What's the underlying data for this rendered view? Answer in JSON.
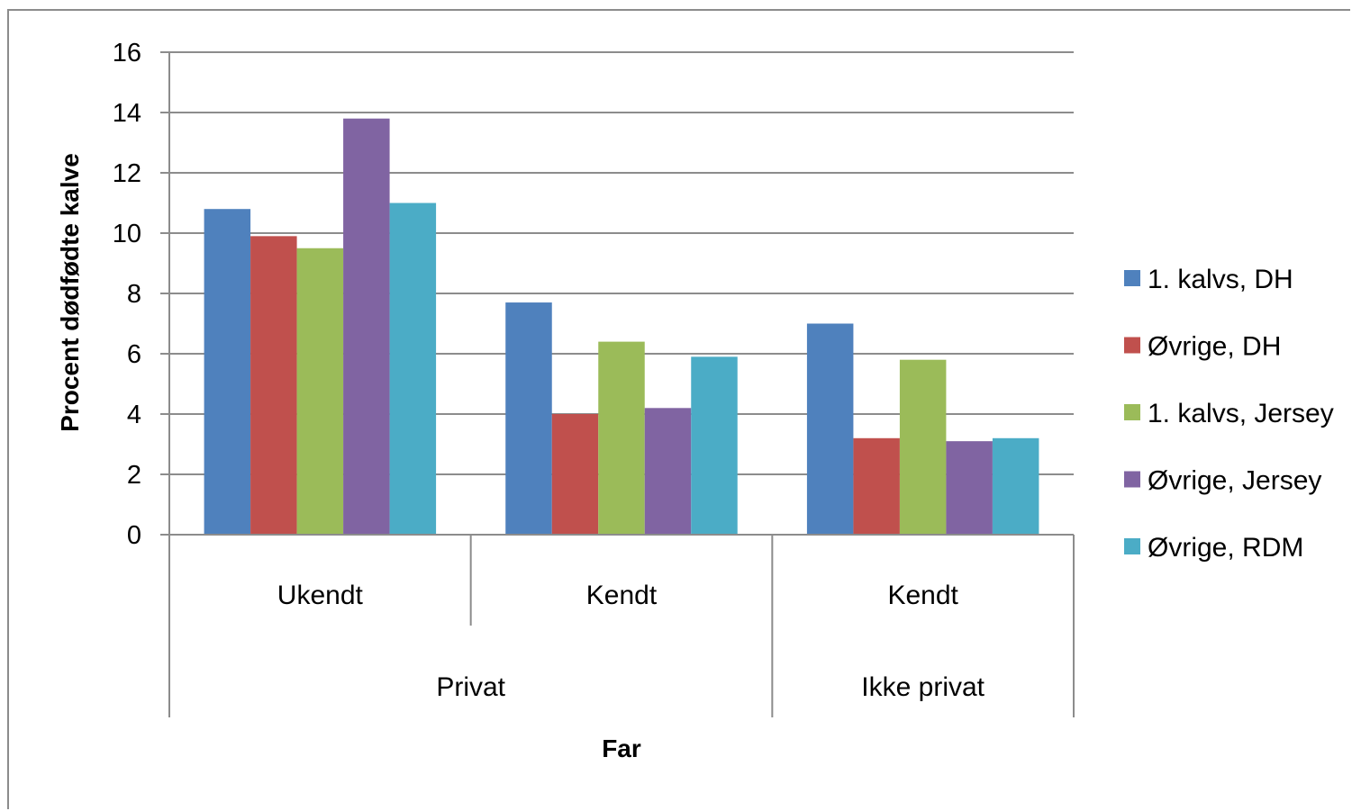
{
  "chart_data": {
    "type": "bar",
    "title": "",
    "ylabel": "Procent dødfødte kalve",
    "xlabel": "Far",
    "ylim": [
      0,
      16
    ],
    "yticks": [
      0,
      2,
      4,
      6,
      8,
      10,
      12,
      14,
      16
    ],
    "grid": true,
    "legend_position": "right",
    "categories": [
      "Ukendt",
      "Kendt",
      "Kendt"
    ],
    "category_groups": [
      {
        "label": "Privat",
        "span": 2
      },
      {
        "label": "Ikke privat",
        "span": 1
      }
    ],
    "series": [
      {
        "name": "1. kalvs, DH",
        "color": "#4F81BD",
        "values": [
          10.8,
          7.7,
          7.0
        ]
      },
      {
        "name": "Øvrige, DH",
        "color": "#C0504D",
        "values": [
          9.9,
          4.0,
          3.2
        ]
      },
      {
        "name": "1. kalvs, Jersey",
        "color": "#9BBB59",
        "values": [
          9.5,
          6.4,
          5.8
        ]
      },
      {
        "name": "Øvrige, Jersey",
        "color": "#8064A2",
        "values": [
          13.8,
          4.2,
          3.1
        ]
      },
      {
        "name": "Øvrige, RDM",
        "color": "#4BACC6",
        "values": [
          11.0,
          5.9,
          3.2
        ]
      }
    ]
  }
}
